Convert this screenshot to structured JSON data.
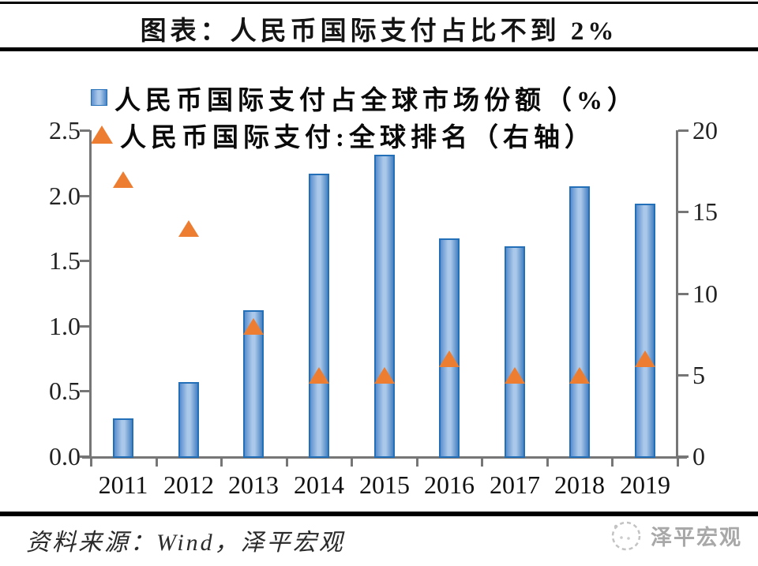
{
  "title": "图表：人民币国际支付占比不到 2%",
  "source_note": "资料来源：Wind，泽平宏观",
  "watermark": {
    "label": "泽平宏观",
    "icon": "sketch-face-logo"
  },
  "colors": {
    "bar_border": "#2470b8",
    "bar_fill_light": "#aac8e9",
    "bar_fill_mid": "#5b8fcf",
    "bar_fill_dark": "#4a83c4",
    "triangle": "#ED7D31",
    "axis": "#767676",
    "title_text": "#141414",
    "watermark_gray": "#a8a8a8"
  },
  "chart_data": {
    "type": "bar",
    "title": "图表：人民币国际支付占比不到 2%",
    "categories": [
      "2011",
      "2012",
      "2013",
      "2014",
      "2015",
      "2016",
      "2017",
      "2018",
      "2019"
    ],
    "series": [
      {
        "name": "人民币国际支付占全球市场份额（%）",
        "type": "bar",
        "axis": "left",
        "marker": "square",
        "values": [
          0.29,
          0.57,
          1.12,
          2.17,
          2.31,
          1.67,
          1.61,
          2.07,
          1.94
        ]
      },
      {
        "name": "人民币国际支付:全球排名（右轴）",
        "type": "scatter",
        "axis": "right",
        "marker": "triangle",
        "values": [
          17,
          14,
          8,
          5,
          5,
          6,
          5,
          5,
          6
        ]
      }
    ],
    "left_axis": {
      "min": 0,
      "max": 2.5,
      "ticks": [
        {
          "label": "0.0",
          "value": 0
        },
        {
          "label": "0.5",
          "value": 0.5
        },
        {
          "label": "1.0",
          "value": 1.0
        },
        {
          "label": "1.5",
          "value": 1.5
        },
        {
          "label": "2.0",
          "value": 2.0
        },
        {
          "label": "2.5",
          "value": 2.5
        }
      ]
    },
    "right_axis": {
      "min": 0,
      "max": 20,
      "ticks": [
        {
          "label": "0",
          "value": 0
        },
        {
          "label": "5",
          "value": 5
        },
        {
          "label": "10",
          "value": 10
        },
        {
          "label": "15",
          "value": 15
        },
        {
          "label": "20",
          "value": 20
        }
      ]
    },
    "legend_position": "top-left",
    "grid": false
  }
}
